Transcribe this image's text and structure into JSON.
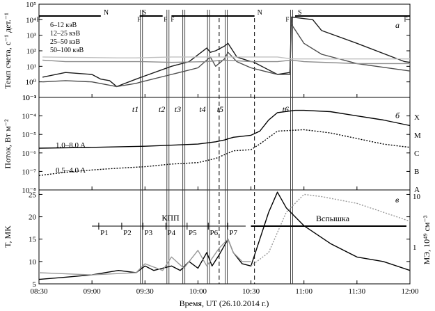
{
  "chart_data": [
    {
      "type": "line",
      "panel_label": "а",
      "ylabel": "Темп счета, с⁻¹ дет.⁻¹",
      "y_scale": "log",
      "ylim": [
        0.1,
        100000
      ],
      "y_tick_labels": [
        "10⁻¹",
        "10⁰",
        "10¹",
        "10²",
        "10³",
        "10⁴",
        "10⁵"
      ],
      "legend": [
        "6–12 кэВ",
        "12–25 кэВ",
        "25–50 кэВ",
        "50–100 кэВ"
      ],
      "legend_colors": [
        "#1a1a1a",
        "#4d4d4d",
        "#8c8c8c",
        "#c0c0c0"
      ],
      "series": [
        {
          "name": "6–12 кэВ",
          "color": "#1a1a1a",
          "x": [
            "08:32",
            "08:45",
            "09:00",
            "09:05",
            "09:10",
            "09:14",
            "09:25",
            "09:28",
            "09:45",
            "09:55",
            "10:05",
            "10:07",
            "10:10",
            "10:15",
            "10:17",
            "10:22",
            "10:30",
            "10:31",
            "10:45",
            "10:52",
            "10:53",
            "11:05",
            "11:10",
            "11:30",
            "11:57",
            "12:00"
          ],
          "y": [
            2,
            4,
            3,
            1.5,
            1.2,
            0.5,
            1.5,
            2,
            10,
            20,
            150,
            80,
            100,
            200,
            300,
            40,
            20,
            20,
            3,
            4,
            15000,
            10000,
            2000,
            300,
            20,
            18
          ]
        },
        {
          "name": "12–25 кэВ",
          "color": "#4d4d4d",
          "x": [
            "08:32",
            "08:45",
            "09:00",
            "09:14",
            "09:25",
            "09:28",
            "09:45",
            "10:00",
            "10:07",
            "10:10",
            "10:15",
            "10:17",
            "10:22",
            "10:30",
            "10:45",
            "10:52",
            "10:53",
            "11:00",
            "11:10",
            "11:30",
            "12:00"
          ],
          "y": [
            1,
            1.2,
            1,
            0.5,
            0.8,
            1,
            3,
            8,
            40,
            10,
            30,
            80,
            20,
            8,
            3,
            3,
            5000,
            300,
            60,
            15,
            5
          ]
        },
        {
          "name": "25–50 кэВ",
          "color": "#8c8c8c",
          "x": [
            "08:32",
            "08:45",
            "09:14",
            "09:25",
            "09:28",
            "09:45",
            "10:05",
            "10:15",
            "10:30",
            "10:45",
            "10:53",
            "11:00",
            "11:30",
            "12:00"
          ],
          "y": [
            25,
            20,
            20,
            20,
            20,
            18,
            20,
            25,
            20,
            20,
            25,
            20,
            15,
            15
          ]
        },
        {
          "name": "50–100 кэВ",
          "color": "#c0c0c0",
          "x": [
            "08:32",
            "09:14",
            "09:25",
            "09:45",
            "10:30",
            "10:45",
            "10:53",
            "11:30",
            "12:00"
          ],
          "y": [
            40,
            35,
            35,
            40,
            40,
            40,
            30,
            30,
            30
          ]
        }
      ]
    },
    {
      "type": "line",
      "panel_label": "б",
      "ylabel": "Поток, Вт м⁻²",
      "y_scale": "log",
      "ylim": [
        1e-08,
        0.001
      ],
      "y_tick_labels": [
        "10⁻⁸",
        "10⁻⁷",
        "10⁻⁶",
        "10⁻⁵",
        "10⁻⁴",
        "10⁻³"
      ],
      "class_labels": [
        "X",
        "M",
        "C",
        "B",
        "A"
      ],
      "series": [
        {
          "name": "1.0–8.0 A",
          "style": "solid",
          "x": [
            "08:30",
            "09:00",
            "09:30",
            "10:00",
            "10:10",
            "10:15",
            "10:20",
            "10:30",
            "10:35",
            "10:40",
            "10:45",
            "10:55",
            "11:00",
            "11:15",
            "11:30",
            "11:45",
            "12:00"
          ],
          "y": [
            1.8e-06,
            2e-06,
            2.3e-06,
            3e-06,
            4e-06,
            5e-06,
            7e-06,
            9e-06,
            1.5e-05,
            6e-05,
            0.00015,
            0.0002,
            0.0002,
            0.00017,
            0.0001,
            6e-05,
            3e-05
          ]
        },
        {
          "name": "0.5–4.0 A",
          "style": "dotted",
          "x": [
            "08:30",
            "08:45",
            "09:00",
            "09:15",
            "09:30",
            "09:45",
            "10:00",
            "10:10",
            "10:15",
            "10:20",
            "10:30",
            "10:35",
            "10:45",
            "11:00",
            "11:15",
            "11:30",
            "11:45",
            "12:00"
          ],
          "y": [
            6e-08,
            9e-08,
            1.2e-07,
            1.5e-07,
            1.8e-07,
            2.5e-07,
            3e-07,
            5e-07,
            8e-07,
            1.3e-06,
            1.5e-06,
            3e-06,
            1.5e-05,
            1.8e-05,
            1.2e-05,
            6e-06,
            3e-06,
            2e-06
          ]
        }
      ]
    },
    {
      "type": "line",
      "panel_label": "в",
      "ylabel": "T, MK",
      "ylabel_right": "МЭ, 10⁴⁹ см⁻³",
      "ylim": [
        5,
        26
      ],
      "y_tick_labels": [
        "5",
        "10",
        "15",
        "20",
        "25"
      ],
      "y2_tick_labels": [
        "1",
        "10"
      ],
      "xlabel": "Время, UT (26.10.2014 г.)",
      "x_tick_labels": [
        "08:30",
        "09:00",
        "09:30",
        "10:00",
        "10:30",
        "11:00",
        "11:30",
        "12:00"
      ],
      "annotations": [
        "КПП",
        "Вспышка"
      ],
      "phase_labels": [
        "P1",
        "P2",
        "P3",
        "P4",
        "P5",
        "P6",
        "P7"
      ],
      "series": [
        {
          "name": "T",
          "style": "solid",
          "color": "#000000",
          "x": [
            "08:30",
            "08:45",
            "09:00",
            "09:15",
            "09:25",
            "09:30",
            "09:35",
            "09:45",
            "09:50",
            "09:55",
            "10:00",
            "10:05",
            "10:08",
            "10:12",
            "10:17",
            "10:20",
            "10:25",
            "10:30",
            "10:35",
            "10:40",
            "10:45",
            "10:50",
            "11:00",
            "11:15",
            "11:30",
            "11:45",
            "12:00"
          ],
          "y": [
            6,
            6.5,
            7,
            8,
            7.5,
            9,
            8,
            9,
            8,
            10,
            8.5,
            12,
            9,
            11.5,
            15,
            12,
            9.5,
            9,
            15,
            21,
            25.5,
            22,
            18,
            14,
            11,
            10,
            8
          ]
        },
        {
          "name": "МЭ",
          "style": "solid",
          "color": "#999999",
          "x": [
            "08:30",
            "09:00",
            "09:25",
            "09:30",
            "09:40",
            "09:45",
            "09:52",
            "10:00",
            "10:05",
            "10:12",
            "10:17",
            "10:20",
            "10:25",
            "10:30"
          ],
          "y": [
            7.5,
            7,
            7.5,
            9.5,
            8,
            11,
            8.5,
            12.5,
            9,
            13,
            15,
            12,
            10,
            10
          ]
        },
        {
          "name": "МЭ (вспышка)",
          "style": "dotted",
          "color": "#999999",
          "x": [
            "10:30",
            "10:40",
            "10:50",
            "11:00",
            "11:10",
            "11:30",
            "11:45",
            "12:00"
          ],
          "y": [
            9,
            12,
            21,
            25,
            24.5,
            23,
            21,
            19
          ]
        }
      ]
    }
  ],
  "event_lines": {
    "markers": [
      {
        "label": "t1",
        "time": "09:28"
      },
      {
        "label": "t2",
        "time": "09:43"
      },
      {
        "label": "t3",
        "time": "09:52"
      },
      {
        "label": "t4",
        "time": "10:06"
      },
      {
        "label": "t5",
        "time": "10:16"
      },
      {
        "label": "t6",
        "time": "10:53"
      }
    ],
    "dashed_times": [
      "10:12",
      "10:32"
    ],
    "day_night": [
      {
        "label": "N",
        "time": "09:05"
      },
      {
        "label": "S",
        "time": "09:27"
      },
      {
        "label": "N",
        "time": "10:32"
      },
      {
        "label": "S",
        "time": "10:55"
      }
    ],
    "f_marks": [
      "F",
      "F",
      "F",
      "F",
      "F",
      "F"
    ]
  },
  "spans": {
    "kpp_label": "КПП",
    "flare_label": "Вспышка"
  }
}
